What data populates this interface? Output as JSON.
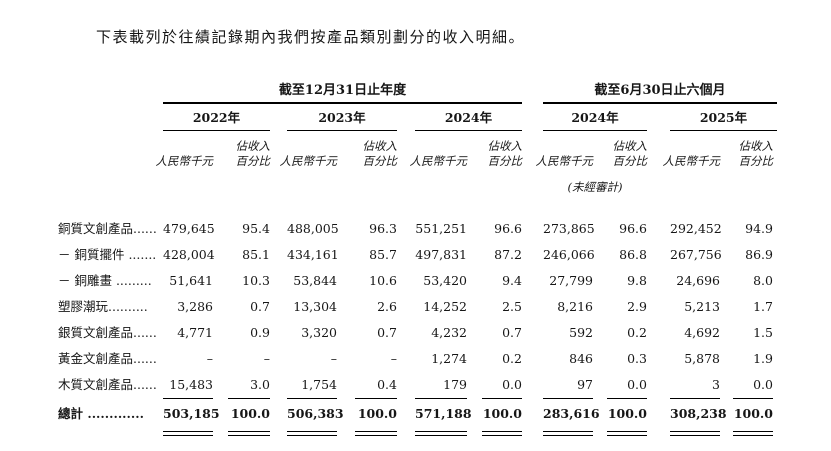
{
  "page": {
    "intro": "下表載列於往績記錄期內我們按產品類別劃分的收入明細。"
  },
  "table": {
    "group_headers": [
      "截至12月31日止年度",
      "截至6月30日止六個月"
    ],
    "year_headers": [
      "2022年",
      "2023年",
      "2024年",
      "2024年",
      "2025年"
    ],
    "col_headers": {
      "amount": "人民幣千元",
      "pct_top": "佔收入",
      "pct_bottom": "百分比"
    },
    "unaudited_note": "(未經審計)",
    "rows": [
      {
        "label": "銅質文創產品......",
        "values": [
          "479,645",
          "95.4",
          "488,005",
          "96.3",
          "551,251",
          "96.6",
          "273,865",
          "96.6",
          "292,452",
          "94.9"
        ]
      },
      {
        "label": "－ 銅質擺件 .......",
        "values": [
          "428,004",
          "85.1",
          "434,161",
          "85.7",
          "497,831",
          "87.2",
          "246,066",
          "86.8",
          "267,756",
          "86.9"
        ]
      },
      {
        "label": "－ 銅雕畫 .........",
        "values": [
          "51,641",
          "10.3",
          "53,844",
          "10.6",
          "53,420",
          "9.4",
          "27,799",
          "9.8",
          "24,696",
          "8.0"
        ]
      },
      {
        "label": "塑膠潮玩..........",
        "values": [
          "3,286",
          "0.7",
          "13,304",
          "2.6",
          "14,252",
          "2.5",
          "8,216",
          "2.9",
          "5,213",
          "1.7"
        ]
      },
      {
        "label": "銀質文創產品......",
        "values": [
          "4,771",
          "0.9",
          "3,320",
          "0.7",
          "4,232",
          "0.7",
          "592",
          "0.2",
          "4,692",
          "1.5"
        ]
      },
      {
        "label": "黃金文創產品......",
        "values": [
          "–",
          "–",
          "–",
          "–",
          "1,274",
          "0.2",
          "846",
          "0.3",
          "5,878",
          "1.9"
        ]
      },
      {
        "label": "木質文創產品......",
        "values": [
          "15,483",
          "3.0",
          "1,754",
          "0.4",
          "179",
          "0.0",
          "97",
          "0.0",
          "3",
          "0.0"
        ]
      }
    ],
    "total_row": {
      "label": "總計 .............",
      "values": [
        "503,185",
        "100.0",
        "506,383",
        "100.0",
        "571,188",
        "100.0",
        "283,616",
        "100.0",
        "308,238",
        "100.0"
      ]
    }
  }
}
